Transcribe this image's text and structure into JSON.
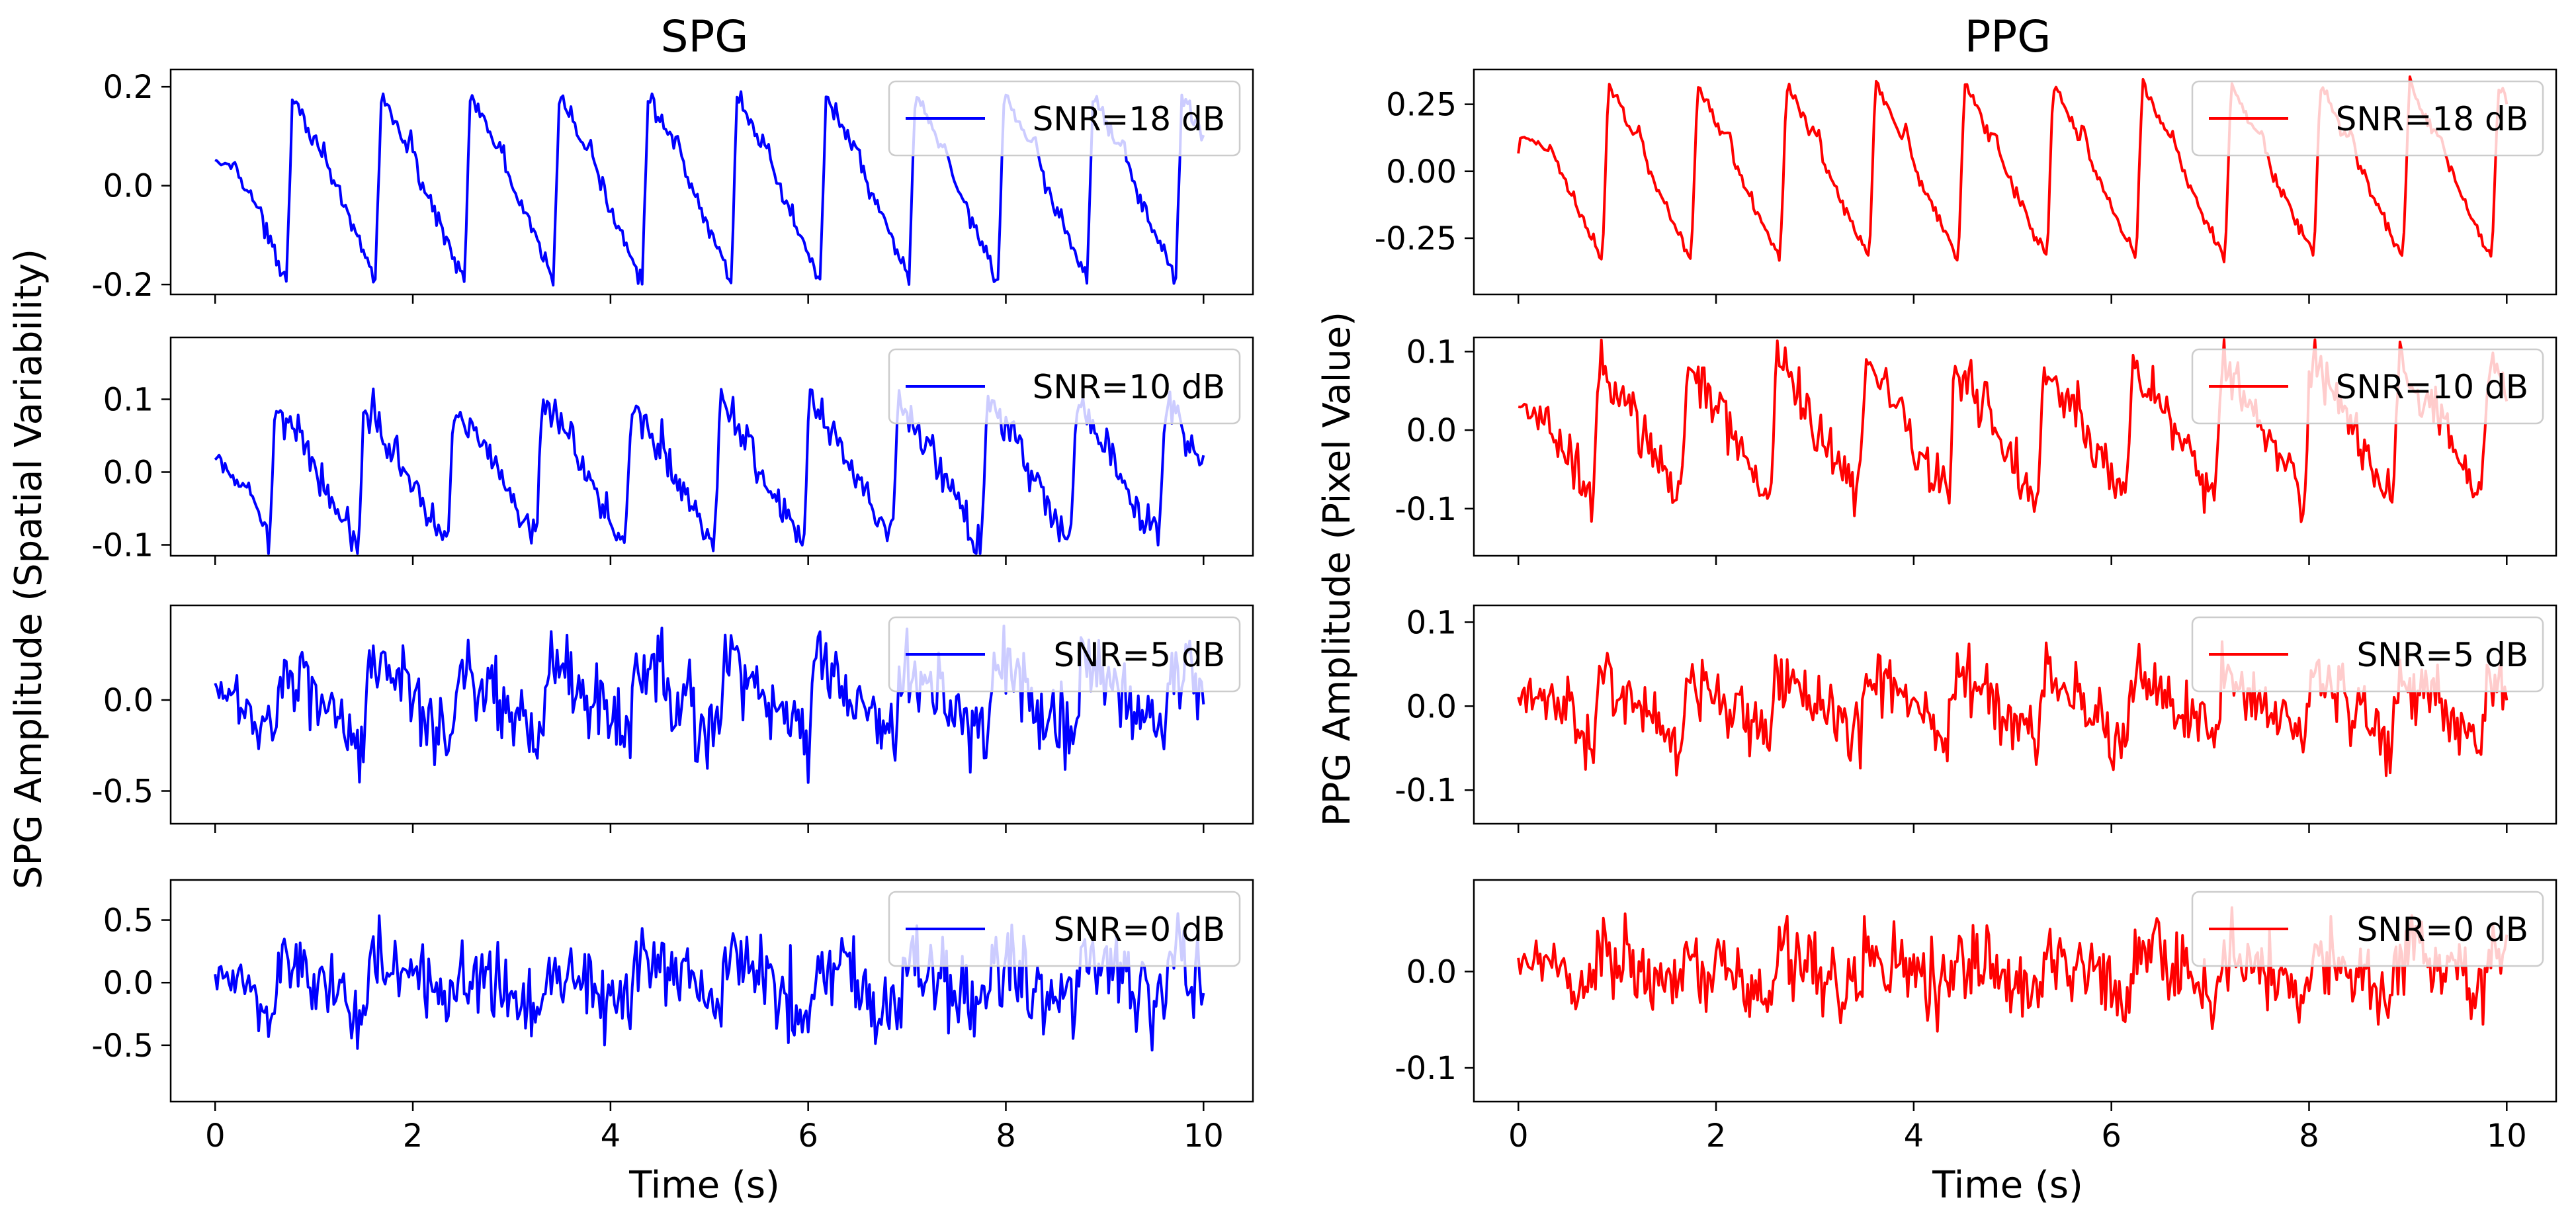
{
  "chart_data": [
    {
      "type": "line",
      "column_title": "SPG",
      "legend": "SNR=18 dB",
      "color": "#0000ff",
      "ylabel": "SPG Amplitude (Spatial Variability)",
      "xlabel": "Time (s)",
      "xlim": [
        -0.45,
        10.5
      ],
      "ylim": [
        -0.22,
        0.235
      ],
      "xticks": [
        0,
        2,
        4,
        6,
        8,
        10
      ],
      "yticks": [
        -0.2,
        0.0,
        0.2
      ],
      "ytick_labels": [
        "-0.2",
        "0.0",
        "0.2"
      ],
      "signal": {
        "amplitude": 0.19,
        "period": 0.9,
        "phase": 0.72,
        "offset": 0.0,
        "noise": 0.015
      }
    },
    {
      "type": "line",
      "column_title": "SPG",
      "legend": "SNR=10 dB",
      "color": "#0000ff",
      "ylabel": "SPG Amplitude (Spatial Variability)",
      "xlabel": "Time (s)",
      "xlim": [
        -0.45,
        10.5
      ],
      "ylim": [
        -0.115,
        0.185
      ],
      "xticks": [
        0,
        2,
        4,
        6,
        8,
        10
      ],
      "yticks": [
        -0.1,
        0.0,
        0.1
      ],
      "ytick_labels": [
        "-0.1",
        "0.0",
        "0.1"
      ],
      "signal": {
        "amplitude": 0.1,
        "period": 0.9,
        "phase": 0.55,
        "offset": 0.0,
        "noise": 0.02
      }
    },
    {
      "type": "line",
      "column_title": "SPG",
      "legend": "SNR=5 dB",
      "color": "#0000ff",
      "ylabel": "SPG Amplitude (Spatial Variability)",
      "xlabel": "Time (s)",
      "xlim": [
        -0.45,
        10.5
      ],
      "ylim": [
        -0.68,
        0.52
      ],
      "xticks": [
        0,
        2,
        4,
        6,
        8,
        10
      ],
      "yticks": [
        -0.5,
        0.0
      ],
      "ytick_labels": [
        "-0.5",
        "0.0"
      ],
      "signal": {
        "amplitude": 0.22,
        "period": 0.9,
        "phase": 0.6,
        "offset": 0.0,
        "noise": 0.17
      }
    },
    {
      "type": "line",
      "column_title": "SPG",
      "legend": "SNR=0 dB",
      "color": "#0000ff",
      "ylabel": "SPG Amplitude (Spatial Variability)",
      "xlabel": "Time (s)",
      "xlim": [
        -0.45,
        10.5
      ],
      "ylim": [
        -0.95,
        0.82
      ],
      "xticks": [
        0,
        2,
        4,
        6,
        8,
        10
      ],
      "yticks": [
        -0.5,
        0.0,
        0.5
      ],
      "ytick_labels": [
        "-0.5",
        "0.0",
        "0.5"
      ],
      "signal": {
        "amplitude": 0.2,
        "period": 0.9,
        "phase": 0.6,
        "offset": 0.0,
        "noise": 0.27
      }
    },
    {
      "type": "line",
      "column_title": "PPG",
      "legend": "SNR=18 dB",
      "color": "#ff0000",
      "ylabel": "PPG Amplitude (Pixel Value)",
      "xlabel": "Time (s)",
      "xlim": [
        -0.45,
        10.5
      ],
      "ylim": [
        -0.46,
        0.38
      ],
      "xticks": [
        0,
        2,
        4,
        6,
        8,
        10
      ],
      "yticks": [
        -0.25,
        0.0,
        0.25
      ],
      "ytick_labels": [
        "-0.25",
        "0.00",
        "0.25"
      ],
      "signal": {
        "amplitude": 0.33,
        "period": 0.9,
        "phase": 0.85,
        "offset": 0.0,
        "noise": 0.02
      }
    },
    {
      "type": "line",
      "column_title": "PPG",
      "legend": "SNR=10 dB",
      "color": "#ff0000",
      "ylabel": "PPG Amplitude (Pixel Value)",
      "xlabel": "Time (s)",
      "xlim": [
        -0.45,
        10.5
      ],
      "ylim": [
        -0.16,
        0.118
      ],
      "xticks": [
        0,
        2,
        4,
        6,
        8,
        10
      ],
      "yticks": [
        -0.1,
        0.0,
        0.1
      ],
      "ytick_labels": [
        "-0.1",
        "0.0",
        "0.1"
      ],
      "signal": {
        "amplitude": 0.09,
        "period": 0.9,
        "phase": 0.75,
        "offset": 0.0,
        "noise": 0.025
      }
    },
    {
      "type": "line",
      "column_title": "PPG",
      "legend": "SNR=5 dB",
      "color": "#ff0000",
      "ylabel": "PPG Amplitude (Pixel Value)",
      "xlabel": "Time (s)",
      "xlim": [
        -0.45,
        10.5
      ],
      "ylim": [
        -0.14,
        0.12
      ],
      "xticks": [
        0,
        2,
        4,
        6,
        8,
        10
      ],
      "yticks": [
        -0.1,
        0.0,
        0.1
      ],
      "ytick_labels": [
        "-0.1",
        "0.0",
        "0.1"
      ],
      "signal": {
        "amplitude": 0.04,
        "period": 0.9,
        "phase": 0.75,
        "offset": 0.0,
        "noise": 0.03
      }
    },
    {
      "type": "line",
      "column_title": "PPG",
      "legend": "SNR=0 dB",
      "color": "#ff0000",
      "ylabel": "PPG Amplitude (Pixel Value)",
      "xlabel": "Time (s)",
      "xlim": [
        -0.45,
        10.5
      ],
      "ylim": [
        -0.135,
        0.095
      ],
      "xticks": [
        0,
        2,
        4,
        6,
        8,
        10
      ],
      "yticks": [
        -0.1,
        0.0
      ],
      "ytick_labels": [
        "-0.1",
        "0.0"
      ],
      "signal": {
        "amplitude": 0.025,
        "period": 0.9,
        "phase": 0.75,
        "offset": 0.0,
        "noise": 0.03
      }
    }
  ],
  "figure": {
    "columns": [
      "SPG",
      "PPG"
    ],
    "left_ylabel": "SPG Amplitude (Spatial Variability)",
    "right_ylabel": "PPG Amplitude (Pixel Value)",
    "xlabel": "Time (s)"
  }
}
